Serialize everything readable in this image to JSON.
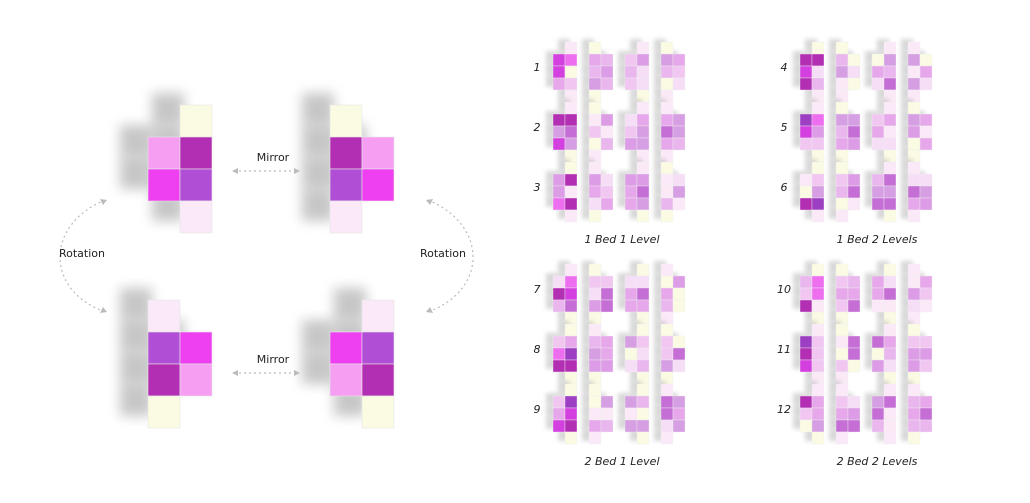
{
  "transforms": {
    "mirror_top": "Mirror",
    "mirror_bottom": "Mirror",
    "rotation_left": "Rotation",
    "rotation_right": "Rotation"
  },
  "groups": [
    {
      "caption": "1 Bed 1 Level",
      "rows": [
        "1",
        "2",
        "3"
      ]
    },
    {
      "caption": "1 Bed 2 Levels",
      "rows": [
        "4",
        "5",
        "6"
      ]
    },
    {
      "caption": "2 Bed 1 Level",
      "rows": [
        "7",
        "8",
        "9"
      ]
    },
    {
      "caption": "2 Bed 2 Levels",
      "rows": [
        "10",
        "11",
        "12"
      ]
    }
  ]
}
